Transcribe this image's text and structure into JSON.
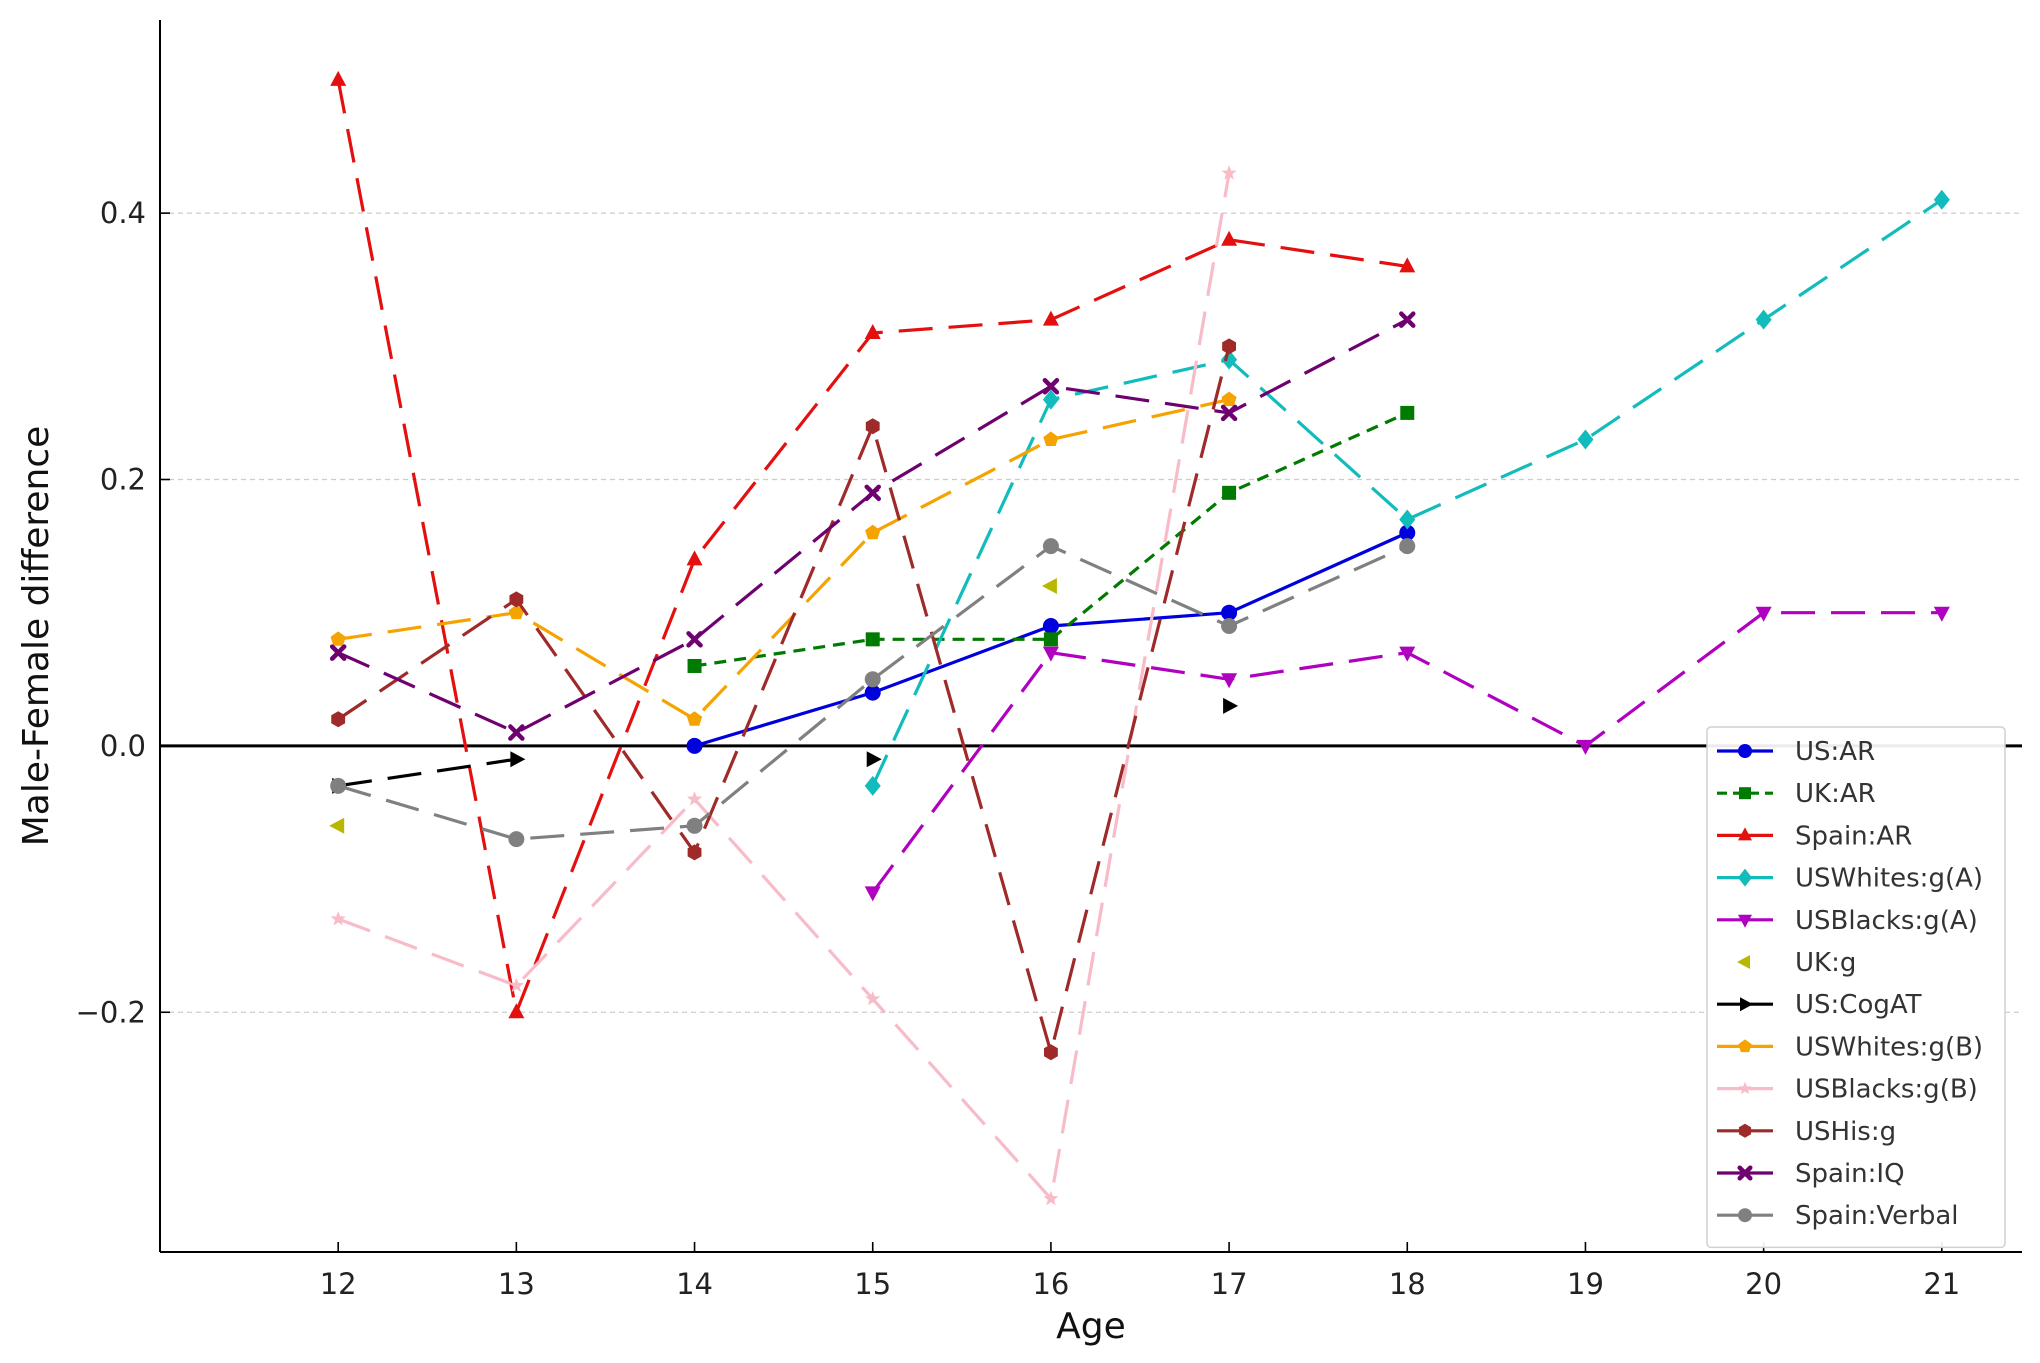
{
  "chart_data": {
    "type": "line",
    "title": "",
    "xlabel": "Age",
    "ylabel": "Male-Female difference",
    "xlim": [
      11,
      21.45
    ],
    "ylim": [
      -0.38,
      0.545
    ],
    "xticks": [
      12,
      13,
      14,
      15,
      16,
      17,
      18,
      19,
      20,
      21
    ],
    "yticks": [
      -0.2,
      0.0,
      0.2,
      0.4
    ],
    "ytick_labels": [
      "−0.2",
      "0.0",
      "0.2",
      "0.4"
    ],
    "grid": "horizontal-dashed",
    "zero_line": true,
    "legend_position": "lower-right",
    "series": [
      {
        "name": "US:AR",
        "color": "#0000dd",
        "marker": "circle",
        "dash": "solid",
        "x": [
          14,
          15,
          16,
          17,
          18
        ],
        "y": [
          0.0,
          0.04,
          0.09,
          0.1,
          0.16
        ]
      },
      {
        "name": "UK:AR",
        "color": "#007a00",
        "marker": "square",
        "dash": "short",
        "x": [
          14,
          15,
          16,
          17,
          18
        ],
        "y": [
          0.06,
          0.08,
          0.08,
          0.19,
          0.25
        ]
      },
      {
        "name": "Spain:AR",
        "color": "#e41010",
        "marker": "triangle-up",
        "dash": "long",
        "x": [
          12,
          13,
          14,
          15,
          16,
          17,
          18
        ],
        "y": [
          0.5,
          -0.2,
          0.14,
          0.31,
          0.32,
          0.38,
          0.36
        ]
      },
      {
        "name": "USWhites:g(A)",
        "color": "#12bcbc",
        "marker": "diamond",
        "dash": "long",
        "x": [
          15,
          16,
          17,
          18,
          19,
          20,
          21
        ],
        "y": [
          -0.03,
          0.26,
          0.29,
          0.17,
          0.23,
          0.32,
          0.41
        ]
      },
      {
        "name": "USBlacks:g(A)",
        "color": "#b000c0",
        "marker": "triangle-down",
        "dash": "long",
        "x": [
          15,
          16,
          17,
          18,
          19,
          20,
          21
        ],
        "y": [
          -0.11,
          0.07,
          0.05,
          0.07,
          0.0,
          0.1,
          0.1
        ]
      },
      {
        "name": "UK:g",
        "color": "#b8b800",
        "marker": "triangle-left",
        "dash": "none",
        "x": [
          12,
          16
        ],
        "y": [
          -0.06,
          0.12
        ]
      },
      {
        "name": "US:CogAT",
        "color": "#000000",
        "marker": "triangle-right",
        "dash": "long",
        "x": [
          12,
          13,
          15,
          17
        ],
        "y": [
          -0.03,
          -0.01,
          -0.01,
          0.03
        ],
        "segments": [
          [
            0,
            1
          ]
        ]
      },
      {
        "name": "USWhites:g(B)",
        "color": "#f5a300",
        "marker": "pentagon",
        "dash": "long",
        "x": [
          12,
          13,
          14,
          15,
          16,
          17
        ],
        "y": [
          0.08,
          0.1,
          0.02,
          0.16,
          0.23,
          0.26
        ]
      },
      {
        "name": "USBlacks:g(B)",
        "color": "#f8bcc8",
        "marker": "star",
        "dash": "long",
        "x": [
          12,
          13,
          14,
          15,
          16,
          17
        ],
        "y": [
          -0.13,
          -0.18,
          -0.04,
          -0.19,
          -0.34,
          0.43
        ]
      },
      {
        "name": "USHis:g",
        "color": "#9e2a2a",
        "marker": "hexagon",
        "dash": "long",
        "x": [
          12,
          13,
          14,
          15,
          16,
          17
        ],
        "y": [
          0.02,
          0.11,
          -0.08,
          0.24,
          -0.23,
          0.3
        ]
      },
      {
        "name": "Spain:IQ",
        "color": "#6e0070",
        "marker": "x",
        "dash": "long",
        "x": [
          12,
          13,
          14,
          15,
          16,
          17,
          18
        ],
        "y": [
          0.07,
          0.01,
          0.08,
          0.19,
          0.27,
          0.25,
          0.32
        ]
      },
      {
        "name": "Spain:Verbal",
        "color": "#808080",
        "marker": "circle",
        "dash": "long",
        "x": [
          12,
          13,
          14,
          15,
          16,
          17,
          18
        ],
        "y": [
          -0.03,
          -0.07,
          -0.06,
          0.05,
          0.15,
          0.09,
          0.15
        ]
      }
    ]
  }
}
